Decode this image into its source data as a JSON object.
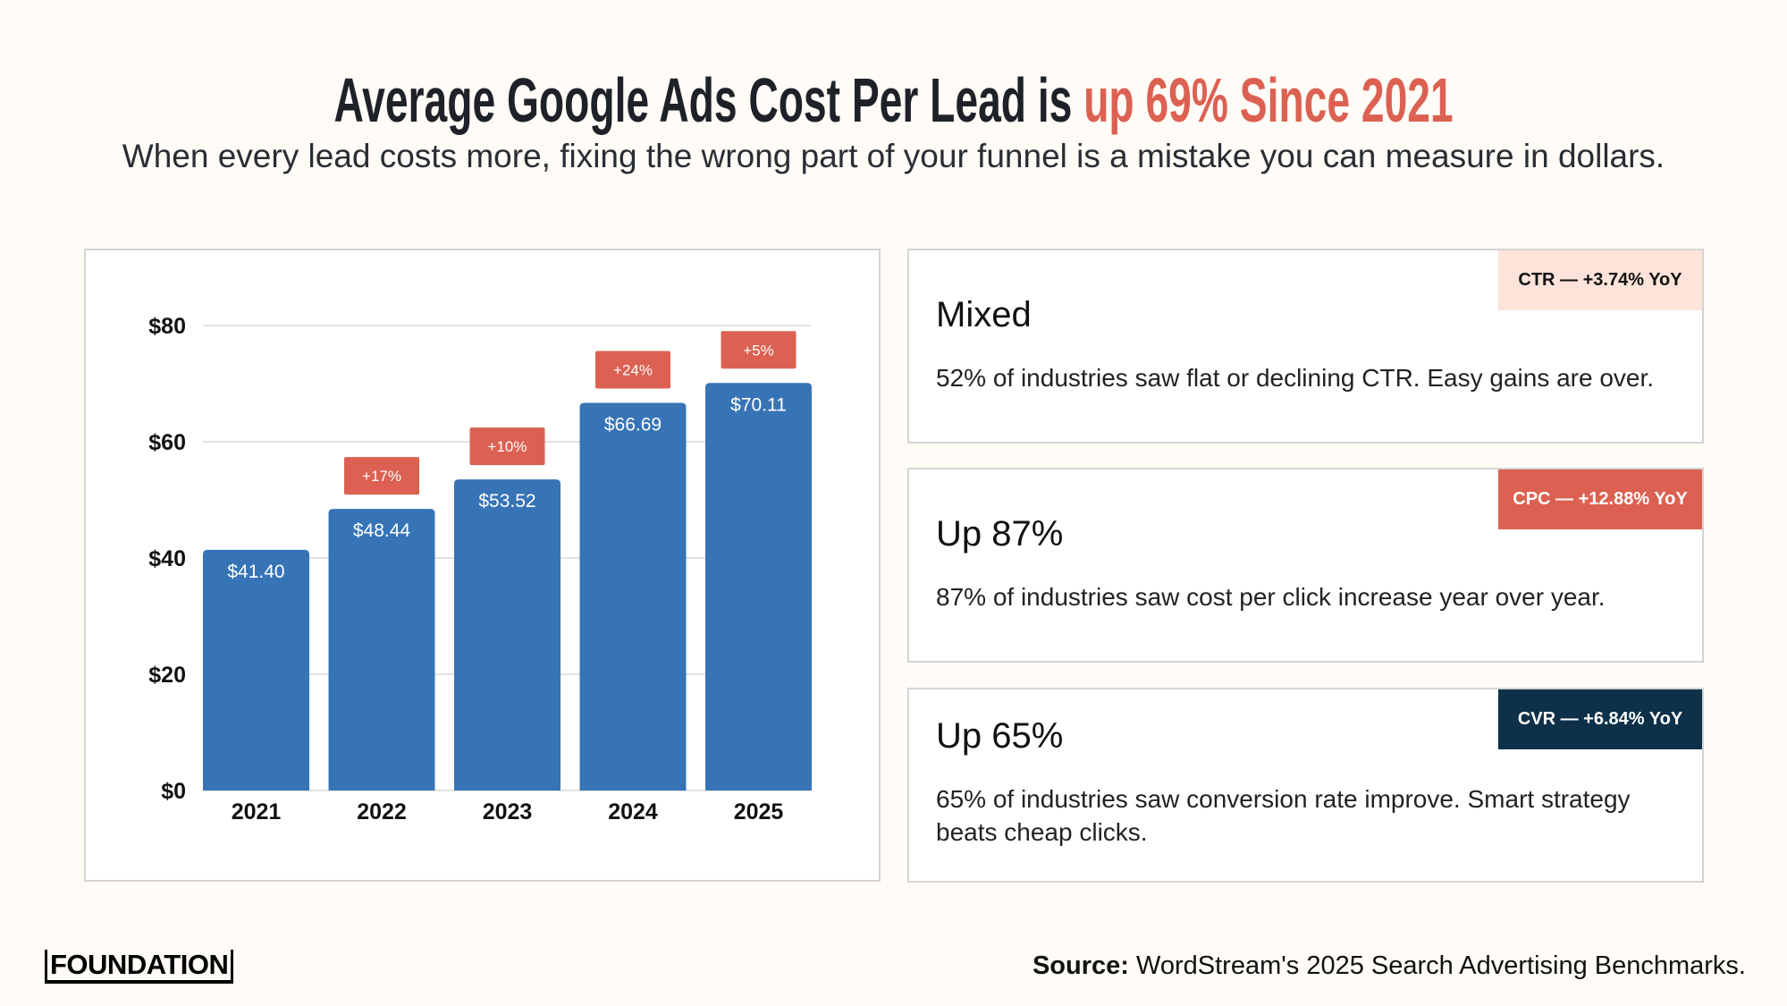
{
  "header": {
    "title_main": "Average Google Ads Cost Per Lead is ",
    "title_highlight": "up 69% Since 2021",
    "subtitle": "When every lead costs more, fixing the wrong part of your funnel is a mistake you can measure in dollars."
  },
  "colors": {
    "bar": "#3774b6",
    "accent": "#dc6152",
    "ctr_badge": "#fde3da",
    "cpc_badge": "#dc6152",
    "cvr_badge": "#0e3149"
  },
  "chart_data": {
    "type": "bar",
    "categories": [
      "2021",
      "2022",
      "2023",
      "2024",
      "2025"
    ],
    "values": [
      41.4,
      48.44,
      53.52,
      66.69,
      70.11
    ],
    "value_labels": [
      "$41.40",
      "$48.44",
      "$53.52",
      "$66.69",
      "$70.11"
    ],
    "change_labels": [
      "",
      "+17%",
      "+10%",
      "+24%",
      "+5%"
    ],
    "ylim": [
      0,
      80
    ],
    "yticks": [
      0,
      20,
      40,
      60,
      80
    ],
    "ytick_labels": [
      "$0",
      "$20",
      "$40",
      "$60",
      "$80"
    ],
    "grid": true,
    "title": "",
    "xlabel": "",
    "ylabel": ""
  },
  "cards": [
    {
      "badge": "CTR — +3.74% YoY",
      "heading": "Mixed",
      "text": "52% of industries saw flat or declining CTR. Easy gains are over."
    },
    {
      "badge": "CPC — +12.88% YoY",
      "heading": "Up 87%",
      "text": "87% of industries saw cost per click increase year over year."
    },
    {
      "badge": "CVR — +6.84% YoY",
      "heading": "Up 65%",
      "text": "65% of industries saw conversion rate improve. Smart strategy beats cheap clicks."
    }
  ],
  "footer": {
    "logo": "FOUNDATION",
    "source_label": "Source:",
    "source_text": " WordStream's 2025 Search Advertising Benchmarks."
  }
}
